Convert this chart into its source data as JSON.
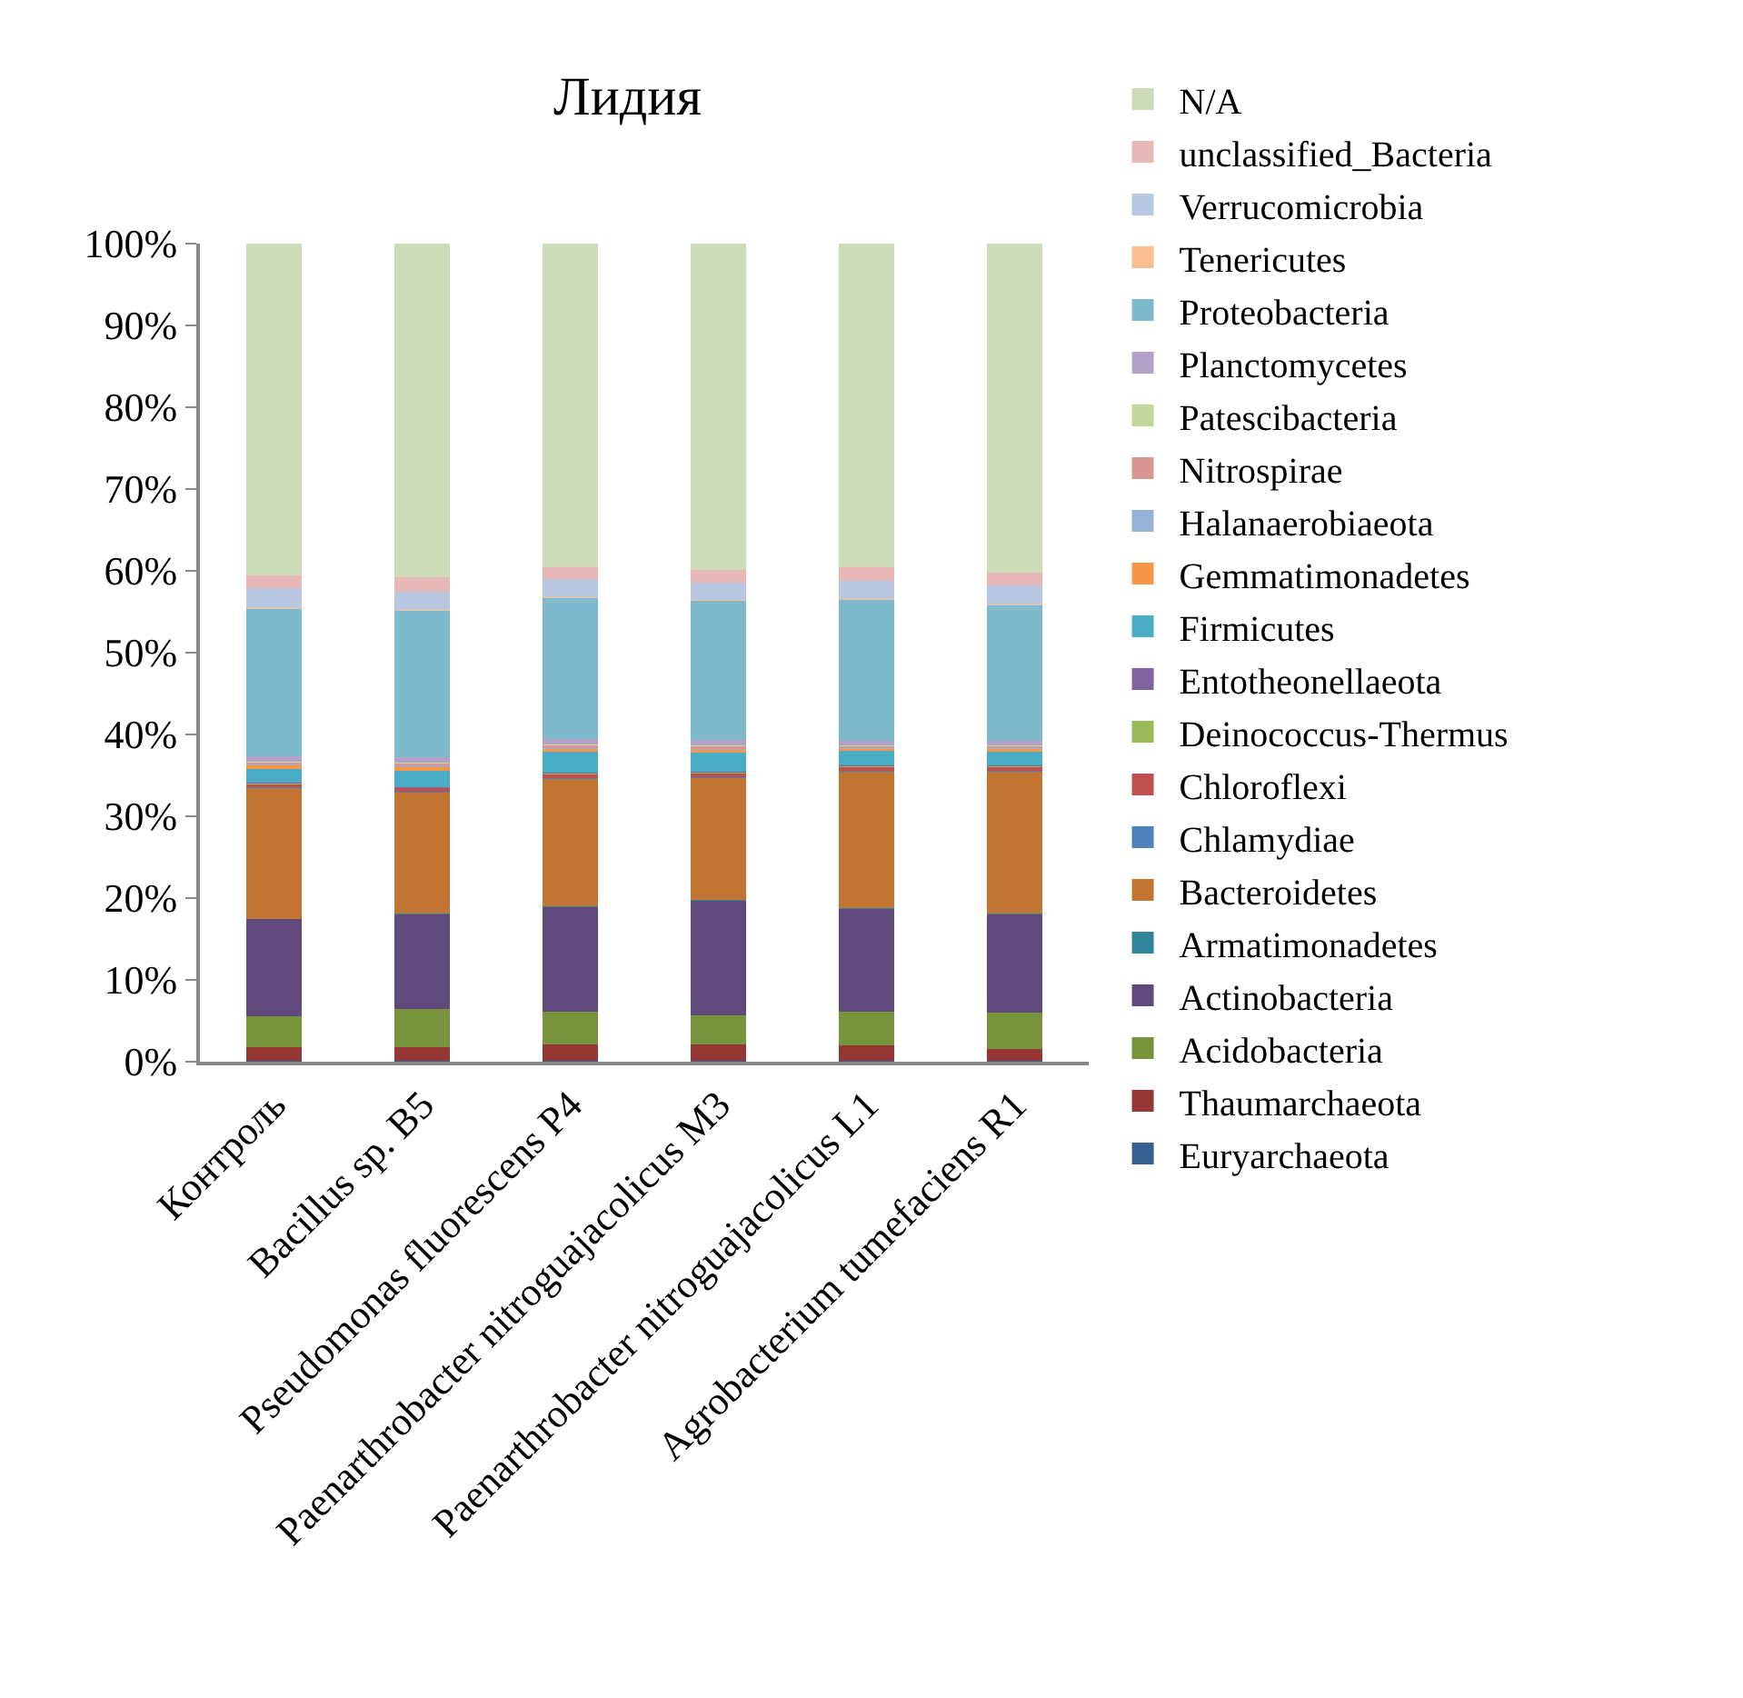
{
  "chart_data": {
    "type": "bar",
    "title": "Лидия",
    "stacked": true,
    "legend": "right",
    "grid": false,
    "categories": [
      "Контроль",
      "Bacillus sp. B5",
      "Pseudomonas fluorescens P4",
      "Paenarthrobacter nitroguajacolicus M3",
      "Paenarthrobacter nitroguajacolicus L1",
      "Agrobacterium tumefaciens R1"
    ],
    "ylim": [
      0,
      100
    ],
    "yticks": [
      {
        "value": 0,
        "label": "0%"
      },
      {
        "value": 10,
        "label": "10%"
      },
      {
        "value": 20,
        "label": "20%"
      },
      {
        "value": 30,
        "label": "30%"
      },
      {
        "value": 40,
        "label": "40%"
      },
      {
        "value": 50,
        "label": "50%"
      },
      {
        "value": 60,
        "label": "60%"
      },
      {
        "value": 70,
        "label": "70%"
      },
      {
        "value": 80,
        "label": "80%"
      },
      {
        "value": 90,
        "label": "90%"
      },
      {
        "value": 100,
        "label": "100%"
      }
    ],
    "series": [
      {
        "name": "Euryarchaeota",
        "color": "#376092",
        "values": [
          0.1,
          0.1,
          0.1,
          0.1,
          0.1,
          0.1
        ]
      },
      {
        "name": "Thaumarchaeota",
        "color": "#953735",
        "values": [
          1.7,
          1.7,
          2.0,
          2.0,
          1.9,
          1.5
        ]
      },
      {
        "name": "Acidobacteria",
        "color": "#77933c",
        "values": [
          3.8,
          4.7,
          4.0,
          3.6,
          4.1,
          4.4
        ]
      },
      {
        "name": "Actinobacteria",
        "color": "#604a7b",
        "values": [
          11.8,
          11.5,
          12.8,
          14.0,
          12.6,
          12.0
        ]
      },
      {
        "name": "Armatimonadetes",
        "color": "#31859c",
        "values": [
          0.1,
          0.1,
          0.1,
          0.1,
          0.1,
          0.1
        ]
      },
      {
        "name": "Bacteroidetes",
        "color": "#c27533",
        "values": [
          16.0,
          14.8,
          15.6,
          14.9,
          16.7,
          17.4
        ]
      },
      {
        "name": "Chlamydiae",
        "color": "#4f81bd",
        "values": [
          0.1,
          0.1,
          0.1,
          0.1,
          0.1,
          0.1
        ]
      },
      {
        "name": "Chloroflexi",
        "color": "#c0504d",
        "values": [
          0.3,
          0.4,
          0.4,
          0.4,
          0.4,
          0.4
        ]
      },
      {
        "name": "Deinococcus-Thermus",
        "color": "#9bbb59",
        "values": [
          0.1,
          0.1,
          0.1,
          0.1,
          0.1,
          0.1
        ]
      },
      {
        "name": "Entotheonellaeota",
        "color": "#8064a2",
        "values": [
          0.1,
          0.1,
          0.1,
          0.1,
          0.1,
          0.1
        ]
      },
      {
        "name": "Firmicutes",
        "color": "#4bacc6",
        "values": [
          1.7,
          2.0,
          2.6,
          2.4,
          1.8,
          1.7
        ]
      },
      {
        "name": "Gemmatimonadetes",
        "color": "#f79646",
        "values": [
          0.4,
          0.4,
          0.3,
          0.3,
          0.2,
          0.3
        ]
      },
      {
        "name": "Halanaerobiaeota",
        "color": "#95b3d7",
        "values": [
          0.1,
          0.1,
          0.1,
          0.1,
          0.1,
          0.1
        ]
      },
      {
        "name": "Nitrospirae",
        "color": "#d99694",
        "values": [
          0.3,
          0.4,
          0.4,
          0.4,
          0.3,
          0.3
        ]
      },
      {
        "name": "Patescibacteria",
        "color": "#c3d69b",
        "values": [
          0.1,
          0.1,
          0.1,
          0.1,
          0.1,
          0.1
        ]
      },
      {
        "name": "Planctomycetes",
        "color": "#b3a2c7",
        "values": [
          0.6,
          0.6,
          0.6,
          0.6,
          0.5,
          0.5
        ]
      },
      {
        "name": "Proteobacteria",
        "color": "#7fbacc",
        "values": [
          18.0,
          17.9,
          17.3,
          17.0,
          17.3,
          16.6
        ]
      },
      {
        "name": "Tenericutes",
        "color": "#fac090",
        "values": [
          0.1,
          0.1,
          0.1,
          0.1,
          0.1,
          0.1
        ]
      },
      {
        "name": "Verrucomicrobia",
        "color": "#b9c7e0",
        "values": [
          2.5,
          2.3,
          2.2,
          2.2,
          2.2,
          2.3
        ]
      },
      {
        "name": "unclassified_Bacteria",
        "color": "#e6b9b8",
        "values": [
          1.6,
          1.7,
          1.5,
          1.5,
          1.6,
          1.6
        ]
      },
      {
        "name": "N/A",
        "color": "#cddbb8",
        "values": [
          40.5,
          40.9,
          39.5,
          39.9,
          39.6,
          40.2
        ]
      }
    ]
  }
}
